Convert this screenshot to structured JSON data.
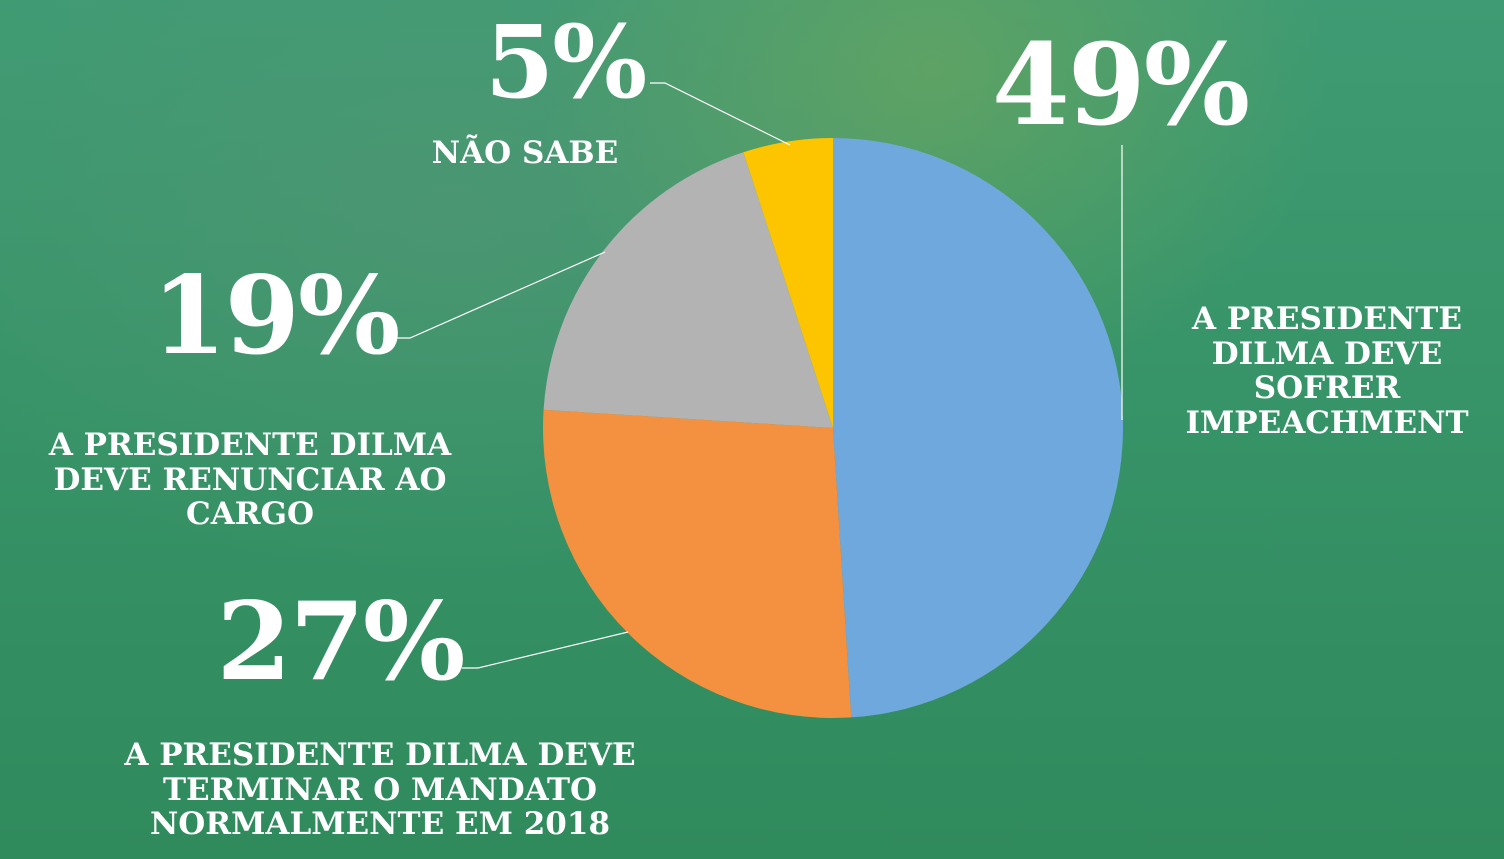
{
  "chart_data": {
    "type": "pie",
    "categories": [
      "A PRESIDENTE DILMA DEVE SOFRER IMPEACHMENT",
      "A PRESIDENTE DILMA DEVE TERMINAR O MANDATO NORMALMENTE EM 2018",
      "A PRESIDENTE DILMA DEVE RENUNCIAR AO CARGO",
      "NÃO SABE"
    ],
    "values": [
      49,
      27,
      19,
      5
    ],
    "value_labels": [
      "49%",
      "27%",
      "19%",
      "5%"
    ],
    "colors": [
      "#6fa8dc",
      "#f39140",
      "#b3b3b3",
      "#fcc500"
    ]
  }
}
